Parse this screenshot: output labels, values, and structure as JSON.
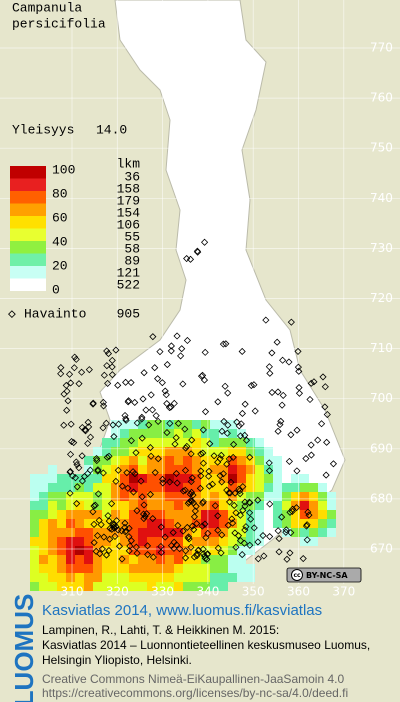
{
  "title": {
    "line1": "Campanula",
    "line2": "persicifolia"
  },
  "frequency": {
    "label": "Yleisyys",
    "value": "14.0"
  },
  "legend": {
    "count_header": "lkm",
    "classes": [
      "100",
      "80",
      "60",
      "40",
      "20",
      "0"
    ],
    "counts": [
      "36",
      "158",
      "179",
      "154",
      "106",
      "55",
      "58",
      "89",
      "121",
      "522"
    ],
    "observation_label": "Havainto",
    "observation_count": "905"
  },
  "grid": {
    "northing": [
      "770",
      "760",
      "750",
      "740",
      "730",
      "720",
      "710",
      "700",
      "690",
      "680",
      "670"
    ],
    "easting": [
      "310",
      "320",
      "330",
      "340",
      "350",
      "360",
      "370"
    ]
  },
  "license_badge": {
    "icon": "cc",
    "text": "BY-NC-SA"
  },
  "sidebar": "LUOMUS",
  "footer": {
    "heading": "Kasviatlas 2014, www.luomus.fi/kasviatlas",
    "lines": [
      "Lampinen, R., Lahti, T. & Heikkinen M. 2015:",
      "Kasviatlas 2014 – Luonnontieteellinen keskusmuseo Luomus,",
      "Helsingin Yliopisto, Helsinki."
    ],
    "license_lines": [
      "Creative Commons Nimeä-EiKaupallinen-JaaSamoin 4.0",
      "https://creativecommons.org/licenses/by-nc-sa/4.0/deed.fi"
    ]
  }
}
